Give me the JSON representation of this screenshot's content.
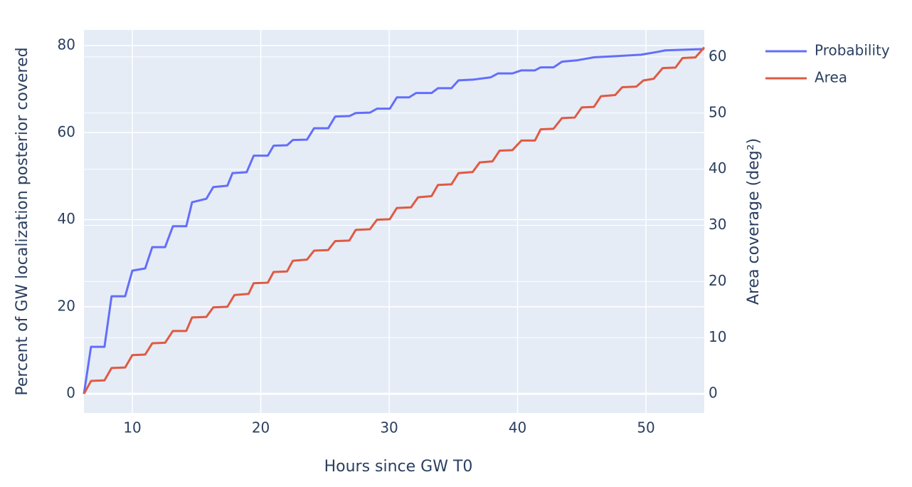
{
  "chart_data": {
    "type": "line",
    "xlabel": "Hours since GW T0",
    "ylabel": "Percent of GW localization posterior covered",
    "y2label": "Area coverage (deg²)",
    "xlim": [
      6.23,
      54.54
    ],
    "xticks": [
      10,
      20,
      30,
      40,
      50
    ],
    "ylim": [
      -4.4,
      83.6
    ],
    "yticks": [
      0,
      20,
      40,
      60,
      80
    ],
    "y2lim": [
      -3.4,
      64.8
    ],
    "y2ticks": [
      0,
      10,
      20,
      30,
      40,
      50,
      60
    ],
    "grid": true,
    "legend": "outside-top-right",
    "series": [
      {
        "name": "Probability",
        "color": "#636efa",
        "x": [
          6.23,
          6.78,
          7.83,
          8.38,
          9.44,
          10,
          11,
          11.55,
          12.55,
          13.16,
          14.2,
          14.65,
          15.76,
          16.3,
          17.4,
          17.8,
          18.9,
          19.45,
          20.55,
          21.0,
          22.05,
          22.5,
          23.6,
          24.15,
          25.25,
          25.8,
          26.9,
          27.4,
          28.5,
          29.05,
          30.05,
          30.6,
          31.55,
          32.1,
          33.3,
          33.8,
          34.85,
          35.4,
          36.6,
          37.9,
          38.47,
          39.6,
          40.3,
          41.35,
          41.8,
          42.8,
          43.46,
          44.6,
          45.95,
          47.9,
          49.6,
          51.0,
          51.5,
          54.54
        ],
        "values": [
          0,
          10.8,
          10.8,
          22.4,
          22.4,
          28.3,
          28.8,
          33.7,
          33.7,
          38.5,
          38.5,
          44.0,
          44.8,
          47.5,
          47.8,
          50.7,
          50.9,
          54.7,
          54.7,
          57.0,
          57.1,
          58.3,
          58.4,
          61.0,
          61.0,
          63.7,
          63.8,
          64.5,
          64.6,
          65.5,
          65.5,
          68.1,
          68.1,
          69.1,
          69.1,
          70.2,
          70.2,
          72.0,
          72.2,
          72.7,
          73.6,
          73.6,
          74.3,
          74.3,
          75.0,
          75.0,
          76.3,
          76.6,
          77.3,
          77.6,
          77.9,
          78.6,
          78.9,
          79.2
        ]
      },
      {
        "name": "Area",
        "color": "#df5a43",
        "axis": "y2",
        "x": [
          6.23,
          6.78,
          7.83,
          8.38,
          9.44,
          10,
          11,
          11.55,
          12.55,
          13.16,
          14.2,
          14.65,
          15.76,
          16.3,
          17.4,
          17.95,
          19.05,
          19.45,
          20.55,
          21.0,
          22.05,
          22.5,
          23.6,
          24.15,
          25.25,
          25.8,
          26.9,
          27.4,
          28.5,
          29.05,
          30.05,
          30.6,
          31.7,
          32.25,
          33.3,
          33.8,
          34.85,
          35.4,
          36.5,
          37.05,
          38.05,
          38.6,
          39.6,
          40.3,
          41.35,
          41.8,
          42.8,
          43.46,
          44.45,
          45.0,
          45.95,
          46.5,
          47.6,
          48.15,
          49.25,
          49.8,
          50.6,
          51.3,
          52.3,
          52.85,
          53.85,
          54.54
        ],
        "values": [
          0,
          2.3,
          2.4,
          4.6,
          4.7,
          6.9,
          7.0,
          9.0,
          9.1,
          11.2,
          11.2,
          13.6,
          13.7,
          15.4,
          15.5,
          17.6,
          17.8,
          19.7,
          19.8,
          21.7,
          21.8,
          23.7,
          23.9,
          25.5,
          25.6,
          27.2,
          27.3,
          29.2,
          29.3,
          31.0,
          31.1,
          33.1,
          33.2,
          35.0,
          35.2,
          37.2,
          37.3,
          39.3,
          39.5,
          41.2,
          41.4,
          43.3,
          43.4,
          45.1,
          45.1,
          47.1,
          47.2,
          49.1,
          49.2,
          51.0,
          51.1,
          53.0,
          53.2,
          54.6,
          54.7,
          55.8,
          56.1,
          58.0,
          58.1,
          59.8,
          59.9,
          61.7
        ]
      }
    ]
  }
}
